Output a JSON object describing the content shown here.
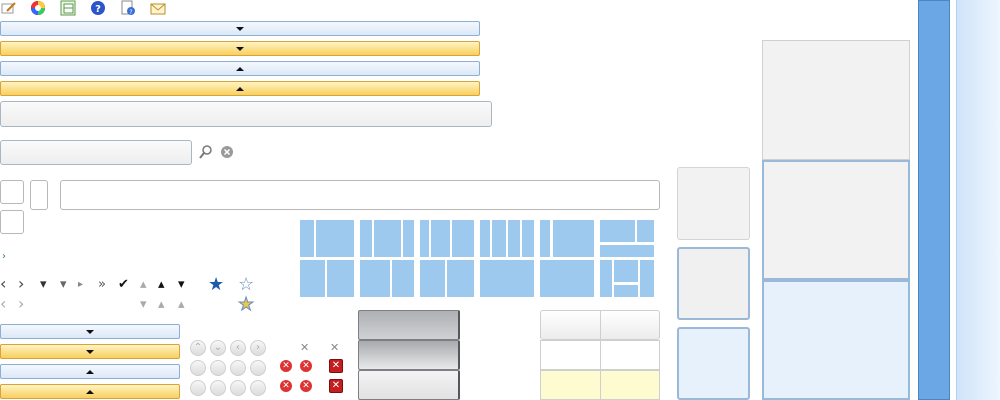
{
  "toolbar": {
    "icons": [
      "edit-icon",
      "color-wheel-icon",
      "table-icon",
      "help-icon",
      "help-document-icon",
      "mail-icon"
    ],
    "glyphs": [
      "✎",
      "◉",
      "▤",
      "?",
      "?",
      "✉"
    ]
  },
  "search": {
    "icon": "🔍",
    "clear": "✕"
  },
  "glyphs": {
    "chev_left": "‹",
    "chev_right": "›",
    "tri_down": "▾",
    "tri_right": "▸",
    "double_right": "»",
    "check": "✔",
    "tri_up": "▴",
    "star": "★",
    "star_outline": "☆",
    "small_arrow": "›",
    "x": "✕",
    "circ_up": "⌃",
    "circ_down": "⌄",
    "circ_left": "‹",
    "circ_right": "›"
  },
  "colors": {
    "accent_blue": "#6aa7e4",
    "tile_blue": "#9ec9ef",
    "gold": "#f9cf5e",
    "light_blue": "#e8f2fd",
    "red": "#d33333",
    "star_blue": "#1d5aa8"
  }
}
